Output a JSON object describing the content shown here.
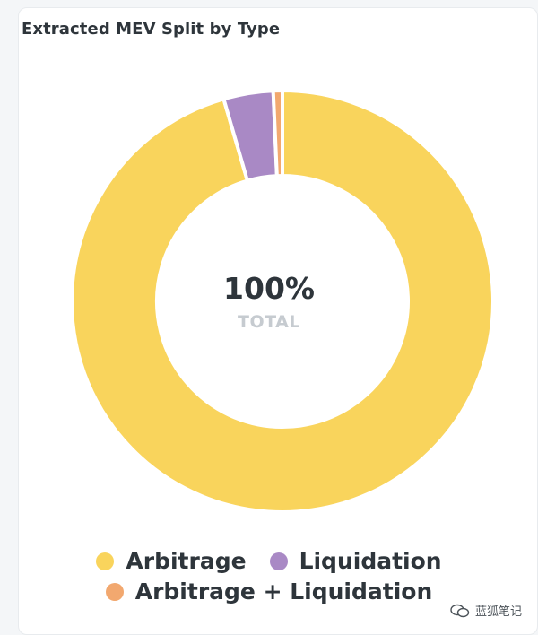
{
  "card": {
    "title": "Extracted MEV Split by Type"
  },
  "chart_data": {
    "type": "pie",
    "donut": true,
    "title": "Extracted MEV Split by Type",
    "categories": [
      "Arbitrage",
      "Liquidation",
      "Arbitrage + Liquidation"
    ],
    "values": [
      95.5,
      3.8,
      0.7
    ],
    "unit": "%",
    "center_value": "100%",
    "center_label": "TOTAL",
    "legend_placement": "bottom",
    "colors": [
      "#f9d45c",
      "#a989c5",
      "#f2a86f"
    ]
  },
  "watermark": {
    "text": "蓝狐笔记"
  }
}
